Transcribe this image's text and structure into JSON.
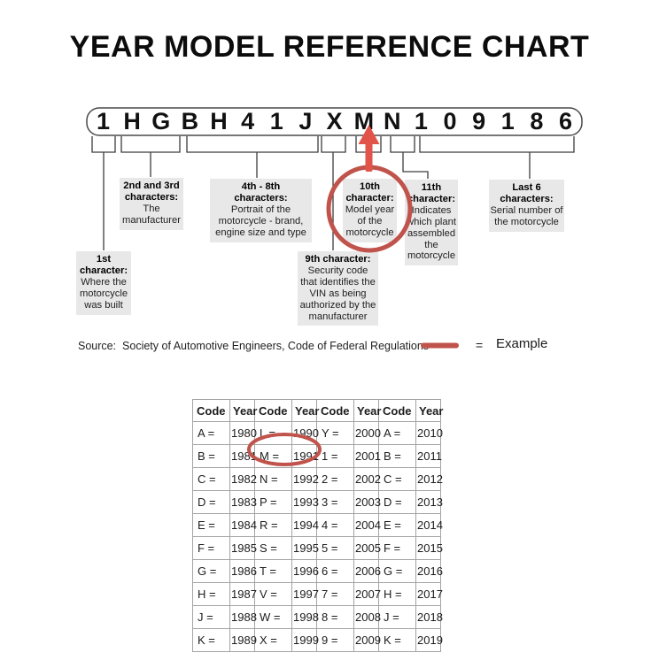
{
  "title": "YEAR MODEL REFERENCE CHART",
  "vin": {
    "characters": [
      "1",
      "H",
      "G",
      "B",
      "H",
      "4",
      "1",
      "J",
      "X",
      "M",
      "N",
      "1",
      "0",
      "9",
      "1",
      "8",
      "6"
    ]
  },
  "callouts": {
    "first": {
      "heading": "1st\ncharacter:",
      "body": "Where the\nmotorcycle\nwas built"
    },
    "second_third": {
      "heading": "2nd and 3rd\ncharacters:",
      "body": "The\nmanufacturer"
    },
    "fourth_eighth": {
      "heading": "4th - 8th\ncharacters:",
      "body": "Portrait of the\nmotorcycle - brand,\nengine size and type"
    },
    "ninth": {
      "heading": "9th character:",
      "body": "Security code\nthat identifies the\nVIN as being\nauthorized by the\nmanufacturer"
    },
    "tenth": {
      "heading": "10th\ncharacter:",
      "body": "Model year\nof the\nmotorcycle"
    },
    "eleventh": {
      "heading": "11th\ncharacter:",
      "body": "Indicates\nwhich plant\nassembled\nthe\nmotorcycle"
    },
    "last_six": {
      "heading": "Last 6\ncharacters:",
      "body": "Serial number of\nthe motorcycle"
    }
  },
  "legend": {
    "source": "Source:  Society of Automotive Engineers, Code of Federal Regulations",
    "equals_sign": "=",
    "example_label": "Example"
  },
  "annotations": {
    "arrow_points_to": "M",
    "circled_callout": "10th character",
    "circled_table_value": "M = 1991"
  },
  "table": {
    "headers": [
      "Code",
      "Year",
      "Code",
      "Year",
      "Code",
      "Year",
      "Code",
      "Year"
    ],
    "rows": [
      [
        "A =",
        "1980",
        "L =",
        "1990",
        "Y =",
        "2000",
        "A =",
        "2010"
      ],
      [
        "B =",
        "1981",
        "M =",
        "1991",
        "1 =",
        "2001",
        "B =",
        "2011"
      ],
      [
        "C =",
        "1982",
        "N =",
        "1992",
        "2 =",
        "2002",
        "C =",
        "2012"
      ],
      [
        "D =",
        "1983",
        "P =",
        "1993",
        "3 =",
        "2003",
        "D =",
        "2013"
      ],
      [
        "E =",
        "1984",
        "R =",
        "1994",
        "4 =",
        "2004",
        "E =",
        "2014"
      ],
      [
        "F =",
        "1985",
        "S =",
        "1995",
        "5 =",
        "2005",
        "F =",
        "2015"
      ],
      [
        "G =",
        "1986",
        "T =",
        "1996",
        "6 =",
        "2006",
        "G =",
        "2016"
      ],
      [
        "H =",
        "1987",
        "V =",
        "1997",
        "7 =",
        "2007",
        "H =",
        "2017"
      ],
      [
        "J =",
        "1988",
        "W =",
        "1998",
        "8 =",
        "2008",
        "J =",
        "2018"
      ],
      [
        "K =",
        "1989",
        "X =",
        "1999",
        "9 =",
        "2009",
        "K =",
        "2019"
      ]
    ]
  },
  "colors": {
    "highlight_red": "#c0534b",
    "arrow_red": "#e2544a",
    "callout_bg": "#e8e8e8"
  }
}
